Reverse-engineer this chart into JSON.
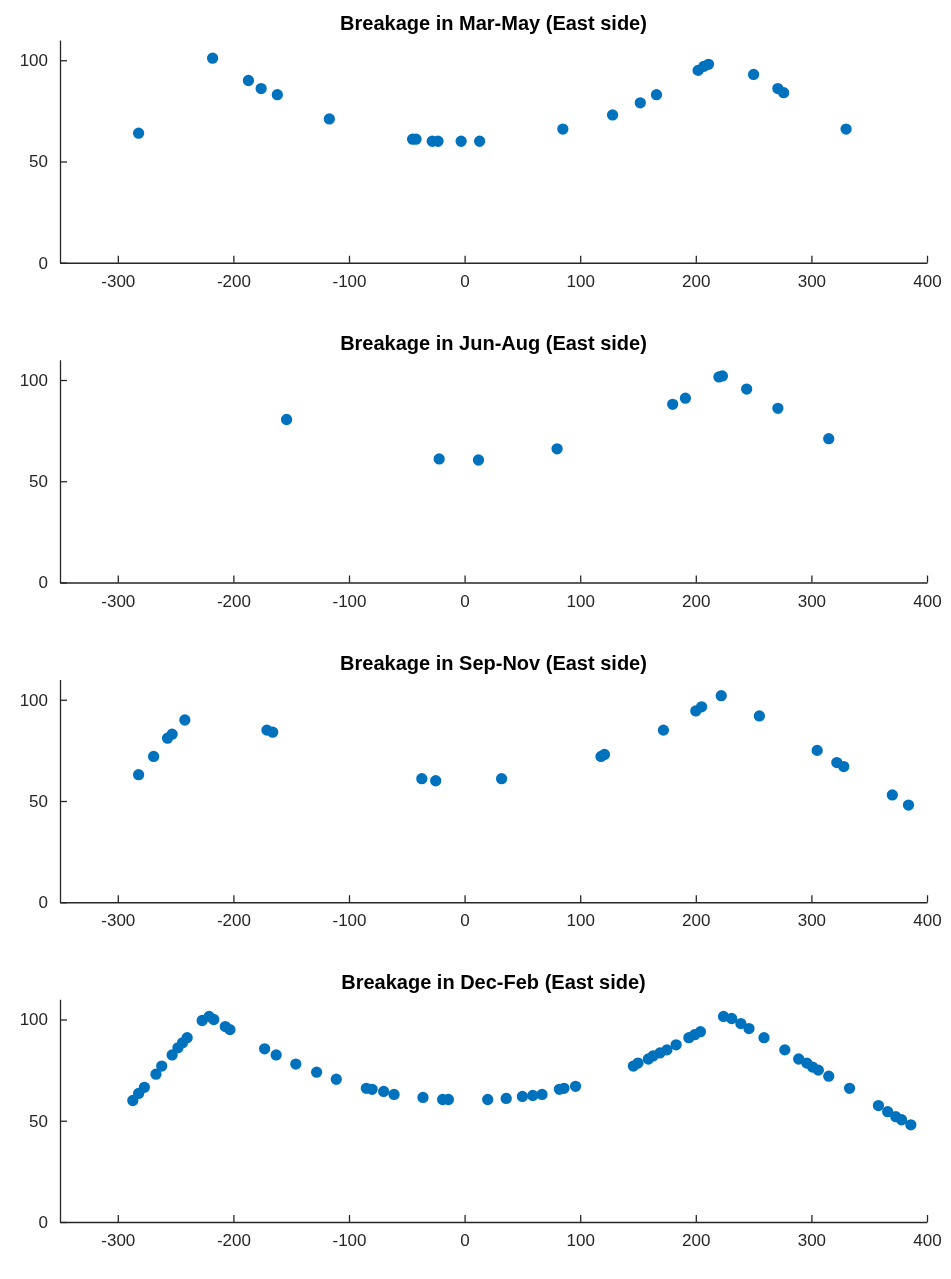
{
  "chart_data": [
    {
      "type": "scatter",
      "title": "Breakage in Mar-May (East side)",
      "color": "#0072bd",
      "marker": "circle",
      "xlim": [
        -350,
        400
      ],
      "ylim": [
        0,
        110
      ],
      "xticks": [
        -300,
        -200,
        -100,
        0,
        100,
        200,
        300,
        400
      ],
      "yticks": [
        0,
        50,
        100
      ],
      "x": [
        -282,
        -218,
        -187,
        -176,
        -162,
        -117,
        -45,
        -42,
        -28,
        -23,
        -3,
        13,
        85,
        128,
        152,
        166,
        202,
        207,
        211,
        250,
        271,
        276,
        330
      ],
      "values": [
        64,
        101,
        90,
        86,
        83,
        71,
        61,
        61,
        60,
        60,
        60,
        60,
        66,
        73,
        79,
        83,
        95,
        97,
        98,
        93,
        86,
        84,
        66
      ]
    },
    {
      "type": "scatter",
      "title": "Breakage in Jun-Aug (East side)",
      "color": "#0072bd",
      "marker": "circle",
      "xlim": [
        -350,
        400
      ],
      "ylim": [
        0,
        110
      ],
      "xticks": [
        -300,
        -200,
        -100,
        0,
        100,
        200,
        300,
        400
      ],
      "yticks": [
        0,
        50,
        100
      ],
      "x": [
        -154,
        -22,
        12,
        80,
        180,
        191,
        220,
        223,
        244,
        271,
        315
      ],
      "values": [
        80.5,
        61,
        60.5,
        66,
        88,
        91,
        101.5,
        102,
        95.5,
        86,
        71
      ]
    },
    {
      "type": "scatter",
      "title": "Breakage in Sep-Nov (East side)",
      "color": "#0072bd",
      "marker": "circle",
      "xlim": [
        -350,
        400
      ],
      "ylim": [
        0,
        110
      ],
      "xticks": [
        -300,
        -200,
        -100,
        0,
        100,
        200,
        300,
        400
      ],
      "yticks": [
        0,
        50,
        100
      ],
      "x": [
        -282,
        -269,
        -257,
        -253,
        -242,
        -171,
        -166,
        -37,
        -25,
        32,
        118,
        121,
        172,
        200,
        205,
        222,
        255,
        305,
        322,
        328,
        370,
        384
      ],
      "values": [
        63,
        72,
        81,
        83,
        90,
        85,
        84,
        61,
        60,
        61,
        72,
        73,
        85,
        94.5,
        96.5,
        102,
        92,
        75,
        69,
        67,
        53,
        48
      ]
    },
    {
      "type": "scatter",
      "title": "Breakage in Dec-Feb (East side)",
      "color": "#0072bd",
      "marker": "circle",
      "xlim": [
        -350,
        400
      ],
      "ylim": [
        0,
        110
      ],
      "xticks": [
        -300,
        -200,
        -100,
        0,
        100,
        200,
        300,
        400
      ],
      "yticks": [
        0,
        50,
        100
      ],
      "x": [
        -287,
        -282,
        -277,
        -267,
        -262,
        -253,
        -248,
        -244,
        -240,
        -227,
        -221,
        -217,
        -207,
        -203,
        -173,
        -163,
        -146,
        -128,
        -111,
        -85,
        -80,
        -70,
        -61,
        -36,
        -19,
        -14,
        20,
        36,
        50,
        59,
        67,
        82,
        86,
        96,
        146,
        150,
        159,
        163,
        169,
        175,
        183,
        194,
        199,
        204,
        224,
        231,
        239,
        246,
        259,
        277,
        289,
        296,
        301,
        306,
        315,
        333,
        358,
        366,
        373,
        378,
        386
      ],
      "values": [
        60,
        63.5,
        66.5,
        73,
        77,
        82.5,
        86,
        88.5,
        91,
        99.5,
        101.5,
        100,
        96.5,
        95,
        85.5,
        82.5,
        78,
        74,
        70.5,
        66,
        65.5,
        64.5,
        63,
        61.5,
        60.5,
        60.5,
        60.5,
        61,
        62,
        62.5,
        63,
        65.5,
        66,
        67,
        77,
        78.5,
        80.5,
        82,
        83.5,
        85,
        87.5,
        91,
        92.5,
        94,
        101.5,
        100.5,
        98,
        95.5,
        91,
        85,
        80.5,
        78.5,
        76.5,
        75,
        72,
        66,
        57.5,
        54.5,
        52,
        50.5,
        48
      ]
    }
  ]
}
